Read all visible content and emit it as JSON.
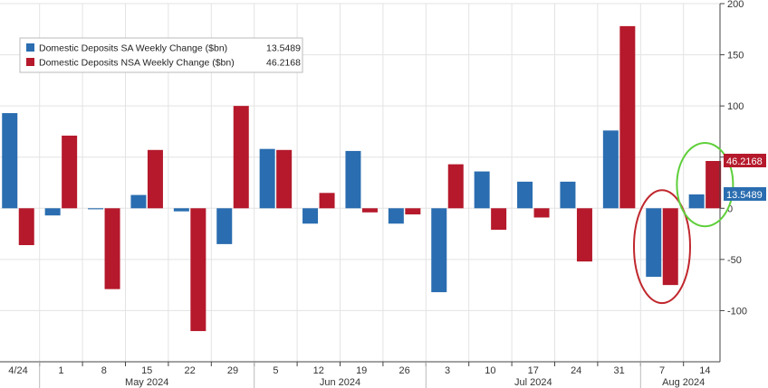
{
  "colors": {
    "sa": "#2a6db0",
    "nsa": "#b5192b",
    "grid": "#e3e3e3",
    "axis": "#444444",
    "red_ring": "#c0272d",
    "green_ring": "#5fcf3a"
  },
  "chart_data": {
    "type": "bar",
    "title": "",
    "xlabel": "",
    "ylabel": "",
    "ylim": [
      -150,
      200
    ],
    "yticks": [
      -100,
      -50,
      0,
      50,
      100,
      150,
      200
    ],
    "ytick_labels": [
      "-100",
      "-50",
      "0",
      "50",
      "100",
      "150",
      "200"
    ],
    "grid": true,
    "y_axis_side": "right",
    "legend_placement": "top-left",
    "categories": [
      "4/24",
      "1",
      "8",
      "15",
      "22",
      "29",
      "5",
      "12",
      "19",
      "26",
      "3",
      "10",
      "17",
      "24",
      "31",
      "7",
      "14"
    ],
    "month_labels": [
      {
        "label": "May 2024",
        "start_index": 1,
        "end_index": 5
      },
      {
        "label": "Jun 2024",
        "start_index": 6,
        "end_index": 9
      },
      {
        "label": "Jul 2024",
        "start_index": 10,
        "end_index": 14
      },
      {
        "label": "Aug 2024",
        "start_index": 15,
        "end_index": 16
      }
    ],
    "series": [
      {
        "name": "Domestic Deposits SA Weekly Change ($bn)",
        "legend_value": "13.5489",
        "color_key": "sa",
        "values": [
          93,
          -7,
          -1,
          13,
          -3,
          -35,
          58,
          -15,
          56,
          -15,
          -82,
          36,
          26,
          26,
          76,
          -67,
          13.5489
        ]
      },
      {
        "name": "Domestic Deposits NSA Weekly Change ($bn)",
        "legend_value": "46.2168",
        "color_key": "nsa",
        "values": [
          -36,
          71,
          -79,
          57,
          -120,
          100,
          57,
          15,
          -4,
          -6,
          43,
          -21,
          -9,
          -52,
          178,
          -75,
          46.2168
        ]
      }
    ],
    "last_value_tags": [
      {
        "series_index": 1,
        "text": "46.2168"
      },
      {
        "series_index": 0,
        "text": "13.5489"
      }
    ],
    "annotations": [
      {
        "type": "ellipse",
        "color_key": "red_ring",
        "index": 15
      },
      {
        "type": "ellipse",
        "color_key": "green_ring",
        "index": 16
      }
    ]
  }
}
